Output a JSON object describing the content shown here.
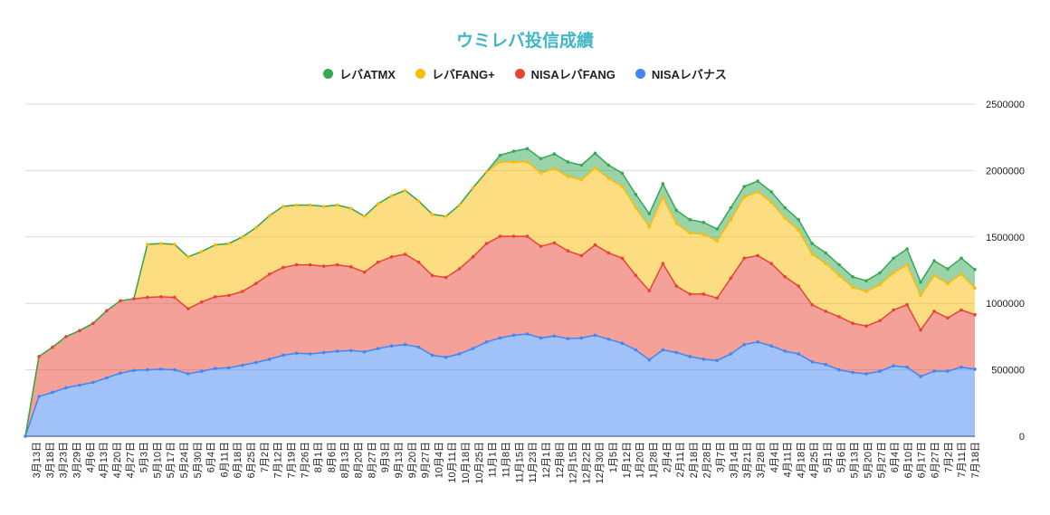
{
  "chart_data": {
    "type": "area",
    "stacked": true,
    "title": "ウミレバ投信成績",
    "legend": {
      "position": "top",
      "items": [
        {
          "label": "レバATMX",
          "color": "#34a853"
        },
        {
          "label": "レバFANG+",
          "color": "#fbbc04"
        },
        {
          "label": "NISAレバFANG",
          "color": "#ea4335"
        },
        {
          "label": "NISAレバナス",
          "color": "#4285f4"
        }
      ]
    },
    "y_axis": {
      "position": "right",
      "min": 0,
      "max": 2500000,
      "ticks": [
        0,
        500000,
        1000000,
        1500000,
        2000000,
        2500000
      ],
      "tick_labels": [
        "0",
        "500000",
        "1000000",
        "1500000",
        "2000000",
        "2500000"
      ],
      "gridlines": true
    },
    "x_axis": {
      "tick_labels": [
        "3月13日",
        "3月18日",
        "3月23日",
        "3月29日",
        "4月6日",
        "4月13日",
        "4月20日",
        "4月27日",
        "5月3日",
        "5月10日",
        "5月17日",
        "5月24日",
        "5月30日",
        "6月4日",
        "6月11日",
        "6月18日",
        "6月25日",
        "7月2日",
        "7月12日",
        "7月19日",
        "7月26日",
        "8月1日",
        "8月6日",
        "8月13日",
        "8月20日",
        "8月27日",
        "9月3日",
        "9月13日",
        "9月20日",
        "9月27日",
        "10月4日",
        "10月11日",
        "10月18日",
        "10月25日",
        "11月1日",
        "11月8日",
        "11月15日",
        "11月23日",
        "12月1日",
        "12月8日",
        "12月15日",
        "12月22日",
        "12月30日",
        "1月5日",
        "1月12日",
        "1月20日",
        "1月28日",
        "2月4日",
        "2月11日",
        "2月18日",
        "2月28日",
        "3月7日",
        "3月14日",
        "3月21日",
        "3月28日",
        "4月4日",
        "4月11日",
        "4月18日",
        "4月25日",
        "5月1日",
        "5月6日",
        "5月13日",
        "5月20日",
        "5月27日",
        "6月4日",
        "6月10日",
        "6月17日",
        "6月27日",
        "7月2日",
        "7月11日",
        "7月18日"
      ]
    },
    "series": [
      {
        "name": "NISAレバナス",
        "color": "#4285f4",
        "values": [
          0,
          300000,
          330000,
          365000,
          385000,
          405000,
          440000,
          475000,
          495000,
          500000,
          505000,
          500000,
          470000,
          490000,
          510000,
          515000,
          535000,
          555000,
          580000,
          610000,
          625000,
          620000,
          630000,
          640000,
          645000,
          635000,
          660000,
          680000,
          690000,
          670000,
          610000,
          595000,
          620000,
          660000,
          710000,
          740000,
          760000,
          770000,
          740000,
          755000,
          735000,
          740000,
          760000,
          730000,
          700000,
          650000,
          575000,
          650000,
          630000,
          600000,
          580000,
          570000,
          620000,
          690000,
          710000,
          680000,
          640000,
          620000,
          560000,
          540000,
          500000,
          480000,
          470000,
          490000,
          530000,
          520000,
          450000,
          490000,
          490000,
          520000,
          505000
        ]
      },
      {
        "name": "NISAレバFANG",
        "color": "#ea4335",
        "values": [
          0,
          300000,
          340000,
          385000,
          410000,
          445000,
          505000,
          545000,
          540000,
          545000,
          545000,
          545000,
          490000,
          520000,
          540000,
          545000,
          555000,
          595000,
          640000,
          660000,
          665000,
          670000,
          650000,
          650000,
          630000,
          600000,
          650000,
          670000,
          680000,
          640000,
          600000,
          600000,
          640000,
          690000,
          740000,
          765000,
          745000,
          735000,
          690000,
          700000,
          660000,
          620000,
          680000,
          650000,
          640000,
          560000,
          520000,
          650000,
          500000,
          470000,
          490000,
          470000,
          570000,
          650000,
          650000,
          620000,
          560000,
          510000,
          430000,
          400000,
          400000,
          370000,
          360000,
          380000,
          420000,
          470000,
          350000,
          450000,
          400000,
          430000,
          410000
        ]
      },
      {
        "name": "レバFANG+",
        "color": "#fbbc04",
        "values": [
          0,
          0,
          0,
          0,
          0,
          0,
          0,
          0,
          0,
          400000,
          400000,
          400000,
          390000,
          380000,
          390000,
          390000,
          410000,
          420000,
          440000,
          460000,
          450000,
          450000,
          450000,
          450000,
          440000,
          420000,
          440000,
          460000,
          480000,
          460000,
          460000,
          460000,
          480000,
          520000,
          540000,
          560000,
          560000,
          560000,
          550000,
          560000,
          560000,
          570000,
          580000,
          560000,
          540000,
          510000,
          480000,
          500000,
          470000,
          460000,
          450000,
          430000,
          440000,
          460000,
          480000,
          460000,
          440000,
          420000,
          380000,
          360000,
          310000,
          270000,
          260000,
          270000,
          280000,
          300000,
          260000,
          270000,
          260000,
          270000,
          200000
        ]
      },
      {
        "name": "レバATMX",
        "color": "#34a853",
        "values": [
          0,
          0,
          0,
          0,
          0,
          0,
          0,
          0,
          0,
          0,
          0,
          0,
          0,
          0,
          0,
          0,
          0,
          0,
          0,
          0,
          0,
          0,
          0,
          0,
          0,
          0,
          0,
          0,
          0,
          0,
          0,
          0,
          0,
          0,
          0,
          50000,
          80000,
          100000,
          110000,
          110000,
          110000,
          110000,
          110000,
          100000,
          100000,
          100000,
          100000,
          100000,
          100000,
          100000,
          90000,
          90000,
          90000,
          80000,
          80000,
          80000,
          80000,
          80000,
          80000,
          80000,
          80000,
          80000,
          80000,
          90000,
          110000,
          120000,
          100000,
          110000,
          110000,
          120000,
          140000
        ]
      }
    ]
  }
}
